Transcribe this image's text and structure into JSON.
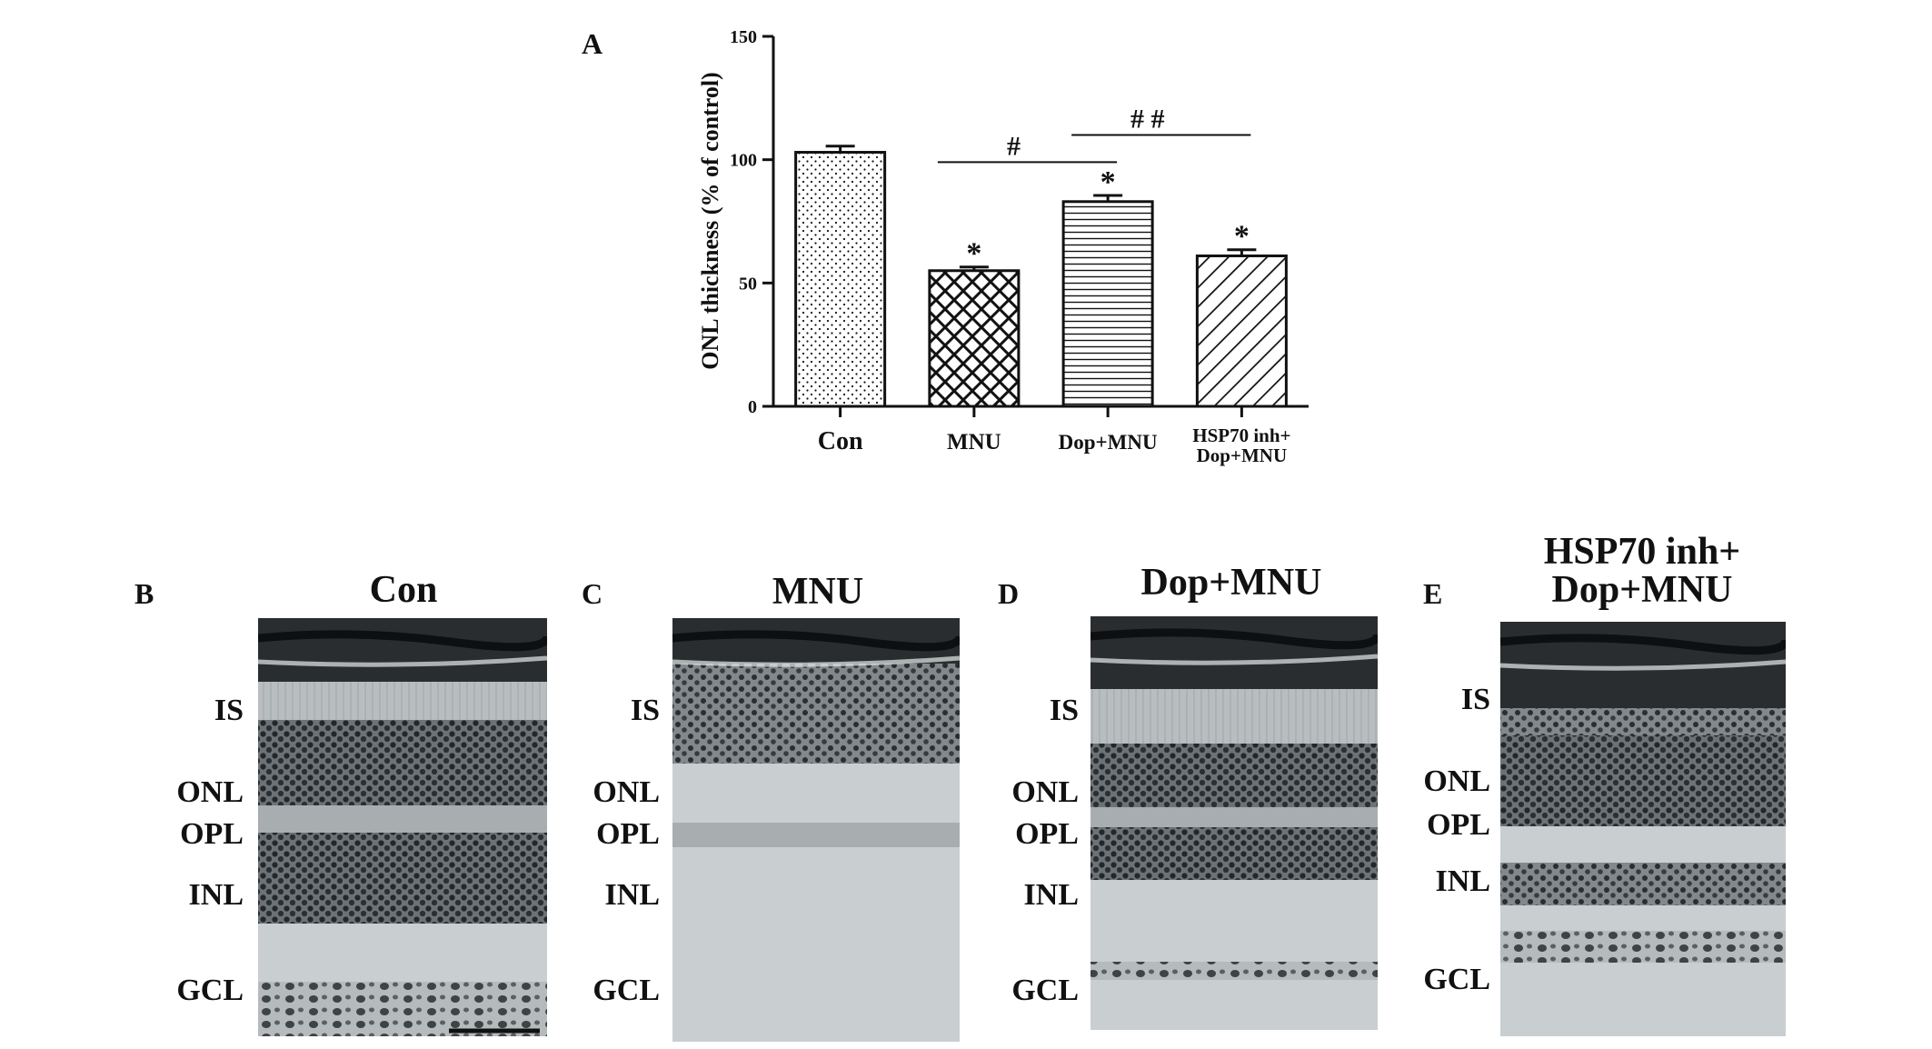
{
  "chart_data": {
    "type": "bar",
    "panel_label": "A",
    "title": "",
    "xlabel": "",
    "ylabel": "ONL thickness (% of control)",
    "ylim": [
      0,
      150
    ],
    "yticks": [
      0,
      50,
      100,
      150
    ],
    "categories": [
      [
        "Con"
      ],
      [
        "MNU"
      ],
      [
        "Dop+MNU"
      ],
      [
        "HSP70 inh+",
        "Dop+MNU"
      ]
    ],
    "values": [
      103,
      55,
      83,
      61
    ],
    "errors": [
      2.5,
      1.5,
      2.5,
      2.5
    ],
    "patterns": [
      "dots",
      "crosshatch",
      "horizontal",
      "diagonal"
    ],
    "significance_marks": [
      "",
      "*",
      "*",
      "*"
    ],
    "brackets": [
      {
        "from": 1,
        "to": 2,
        "label": "#",
        "y": 99
      },
      {
        "from": 2,
        "to": 3,
        "label": "# #",
        "y": 110
      }
    ],
    "grid": false,
    "legend": "none"
  },
  "micrographs": [
    {
      "panel_label": "B",
      "title": [
        "Con"
      ],
      "layer_labels": [
        "IS",
        "ONL",
        "OPL",
        "INL",
        "GCL"
      ],
      "scale_bar": true
    },
    {
      "panel_label": "C",
      "title": [
        "MNU"
      ],
      "layer_labels": [
        "IS",
        "ONL",
        "OPL",
        "INL",
        "GCL"
      ],
      "scale_bar": false
    },
    {
      "panel_label": "D",
      "title": [
        "Dop+MNU"
      ],
      "layer_labels": [
        "IS",
        "ONL",
        "OPL",
        "INL",
        "GCL"
      ],
      "scale_bar": false
    },
    {
      "panel_label": "E",
      "title": [
        "HSP70 inh+",
        "Dop+MNU"
      ],
      "layer_labels": [
        "IS",
        "ONL",
        "OPL",
        "INL",
        "GCL"
      ],
      "scale_bar": false
    }
  ],
  "colors": {
    "ink": "#111111",
    "background": "#ffffff",
    "tissue": "#d2d6d8"
  }
}
